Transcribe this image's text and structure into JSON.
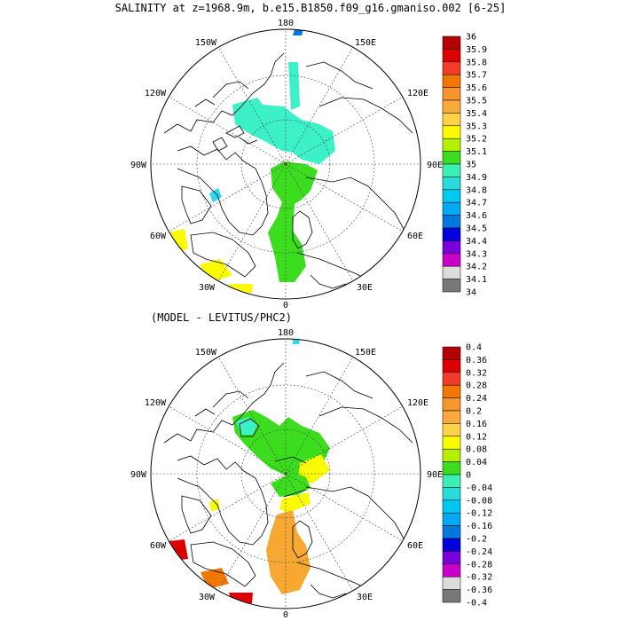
{
  "title": "SALINITY at z=1968.9m, b.e15.B1850.f09_g16.gmaniso.002 [6-25]",
  "subtitle": "(MODEL - LEVITUS/PHC2)",
  "lon_labels": {
    "deg180": "180",
    "deg150e": "150E",
    "deg120e": "120E",
    "deg90e": "90E",
    "deg60e": "60E",
    "deg30e": "30E",
    "deg0": "0",
    "deg30w": "30W",
    "deg60w": "60W",
    "deg90w": "90W",
    "deg120w": "120W",
    "deg150w": "150W"
  },
  "colorbar_top": {
    "labels": [
      "36",
      "35.9",
      "35.8",
      "35.7",
      "35.6",
      "35.5",
      "35.4",
      "35.3",
      "35.2",
      "35.1",
      "35",
      "34.9",
      "34.8",
      "34.7",
      "34.6",
      "34.5",
      "34.4",
      "34.3",
      "34.2",
      "34.1",
      "34"
    ],
    "colors": [
      "#b40000",
      "#dc0000",
      "#f03c28",
      "#f07800",
      "#f7962d",
      "#faaa3c",
      "#fcd246",
      "#fafa00",
      "#b4f000",
      "#3cdc1e",
      "#3cf0b4",
      "#28dcdc",
      "#00c8f0",
      "#00aaf0",
      "#0078dc",
      "#0000dc",
      "#7800dc",
      "#c800c8",
      "#dcdcdc",
      "#787878"
    ]
  },
  "colorbar_bottom": {
    "labels": [
      "0.4",
      "0.36",
      "0.32",
      "0.28",
      "0.24",
      "0.2",
      "0.16",
      "0.12",
      "0.08",
      "0.04",
      "0",
      "-0.04",
      "-0.08",
      "-0.12",
      "-0.16",
      "-0.2",
      "-0.24",
      "-0.28",
      "-0.32",
      "-0.36",
      "-0.4"
    ],
    "colors": [
      "#b40000",
      "#dc0000",
      "#f03c28",
      "#f07800",
      "#f7962d",
      "#faaa3c",
      "#fcd246",
      "#fafa00",
      "#b4f000",
      "#3cdc1e",
      "#3cf0b4",
      "#28dcdc",
      "#00c8f0",
      "#00aaf0",
      "#0078dc",
      "#0000dc",
      "#7800dc",
      "#c800c8",
      "#dcdcdc",
      "#787878"
    ]
  },
  "field_colors": {
    "top_main": "#3cf0c8",
    "top_green": "#3cdc1e",
    "top_yellow": "#fafa00",
    "top_cyan": "#28dcf0",
    "top_blue": "#0078dc",
    "bot_green": "#3cdc1e",
    "bot_yellow": "#fafa00",
    "bot_orange": "#f7a833",
    "bot_darkorange": "#f07800",
    "bot_red": "#dc0000",
    "bot_cyan": "#3cf0c8"
  }
}
